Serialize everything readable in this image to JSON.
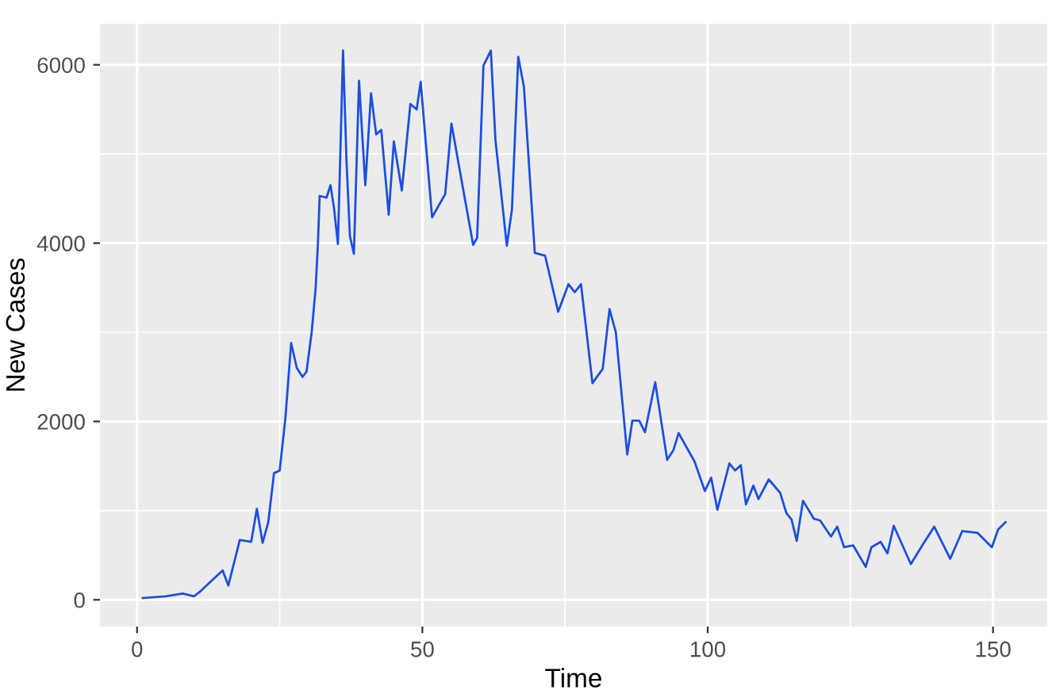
{
  "chart_data": {
    "type": "line",
    "xlabel": "Time",
    "ylabel": "New Cases",
    "series": [
      {
        "color": "#1a4fe0",
        "x": [
          1,
          5,
          8,
          10,
          11,
          15,
          16,
          18,
          20,
          21,
          22,
          23,
          24,
          25,
          26,
          27,
          28,
          29,
          29.7,
          30.6,
          31.3,
          31.7,
          32,
          33.2,
          33.9,
          34.5,
          35.2,
          36.1,
          36.7,
          37.3,
          38,
          38.9,
          39.4,
          40,
          41,
          41.9,
          42.8,
          44.1,
          45,
          46.4,
          47.9,
          49,
          49.7,
          51.7,
          54,
          55.1,
          57.1,
          58.9,
          59.6,
          60.7,
          62,
          62.8,
          64.8,
          65.7,
          66.8,
          67.8,
          69.7,
          71.5,
          73.8,
          75.6,
          76.7,
          77.8,
          79.8,
          81.6,
          82.8,
          83.9,
          85.9,
          86.8,
          88,
          89,
          90.8,
          92.9,
          94,
          94.9,
          97.7,
          99.5,
          100.6,
          101.7,
          103.8,
          104.8,
          105.8,
          106.7,
          108,
          108.9,
          110.7,
          112.7,
          113.8,
          114.7,
          115.6,
          116.7,
          118.6,
          119.7,
          121.6,
          122.7,
          123.9,
          125.5,
          127.7,
          128.7,
          130.3,
          131.5,
          132.6,
          135.6,
          137.7,
          139.7,
          142.5,
          144.6,
          147.3,
          149.8,
          150.9,
          152.2
        ],
        "values": [
          20,
          40,
          70,
          40,
          90,
          330,
          160,
          670,
          650,
          1020,
          640,
          870,
          1420,
          1450,
          2040,
          2880,
          2600,
          2500,
          2560,
          3000,
          3500,
          4000,
          4530,
          4510,
          4650,
          4400,
          3990,
          6160,
          4930,
          4080,
          3880,
          5820,
          5280,
          4650,
          5680,
          5220,
          5270,
          4320,
          5140,
          4590,
          5560,
          5500,
          5810,
          4290,
          4550,
          5340,
          4620,
          3980,
          4060,
          5990,
          6160,
          5160,
          3970,
          4380,
          6090,
          5750,
          3890,
          3860,
          3230,
          3540,
          3450,
          3540,
          2430,
          2590,
          3260,
          3000,
          1630,
          2010,
          2010,
          1880,
          2440,
          1570,
          1680,
          1870,
          1550,
          1220,
          1370,
          1010,
          1530,
          1450,
          1510,
          1070,
          1280,
          1130,
          1350,
          1200,
          970,
          900,
          660,
          1110,
          910,
          890,
          710,
          820,
          590,
          610,
          370,
          590,
          650,
          520,
          830,
          400,
          620,
          820,
          460,
          770,
          750,
          590,
          790,
          870
        ]
      }
    ],
    "xlim": [
      -6.5,
      159.5
    ],
    "ylim": [
      -300,
      6460
    ],
    "xticks": [
      0,
      50,
      100,
      150
    ],
    "yticks": [
      0,
      2000,
      4000,
      6000
    ],
    "grid": true,
    "marker": "none",
    "line_style": "solid"
  }
}
